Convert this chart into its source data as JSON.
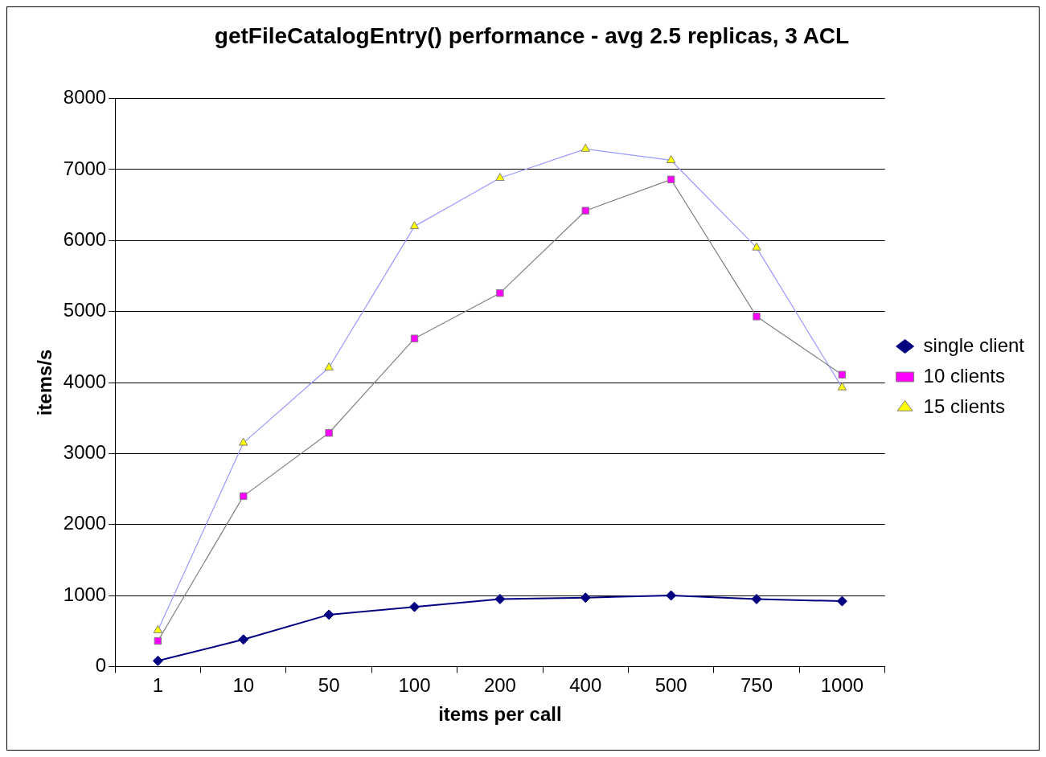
{
  "chart_data": {
    "type": "line",
    "title": "getFileCatalogEntry() performance - avg 2.5 replicas, 3 ACL",
    "xlabel": "items per call",
    "ylabel": "items/s",
    "categories": [
      "1",
      "10",
      "50",
      "100",
      "200",
      "400",
      "500",
      "750",
      "1000"
    ],
    "series": [
      {
        "name": "single client",
        "color": "#000080",
        "marker": "diamond",
        "values": [
          80,
          380,
          730,
          840,
          950,
          970,
          1000,
          950,
          920
        ]
      },
      {
        "name": "10 clients",
        "color": "#808080",
        "colors": [
          "#ff00ff",
          "#ff00ff",
          "#ff00ff",
          "#ff00ff",
          "#ff00ff",
          "#ff00ff",
          "#ff00ff",
          "#ff00ff",
          "#ff00ff"
        ],
        "marker": "square",
        "values": [
          360,
          2400,
          3290,
          4620,
          5260,
          6420,
          6860,
          4930,
          4110
        ]
      },
      {
        "name": "15 clients",
        "color": "#9999ff",
        "colors": [
          "#ffff00",
          "#ffff00",
          "#ffff00",
          "#ffff00",
          "#ffff00",
          "#ffff00",
          "#ffff00",
          "#ffff00",
          "#ffff00"
        ],
        "marker": "triangle",
        "values": [
          510,
          3150,
          4210,
          6200,
          6880,
          7290,
          7130,
          5900,
          3930
        ]
      }
    ],
    "ylim": [
      0,
      8000
    ],
    "yticks": [
      0,
      1000,
      2000,
      3000,
      4000,
      5000,
      6000,
      7000,
      8000
    ],
    "grid": "y",
    "legend": "right"
  }
}
